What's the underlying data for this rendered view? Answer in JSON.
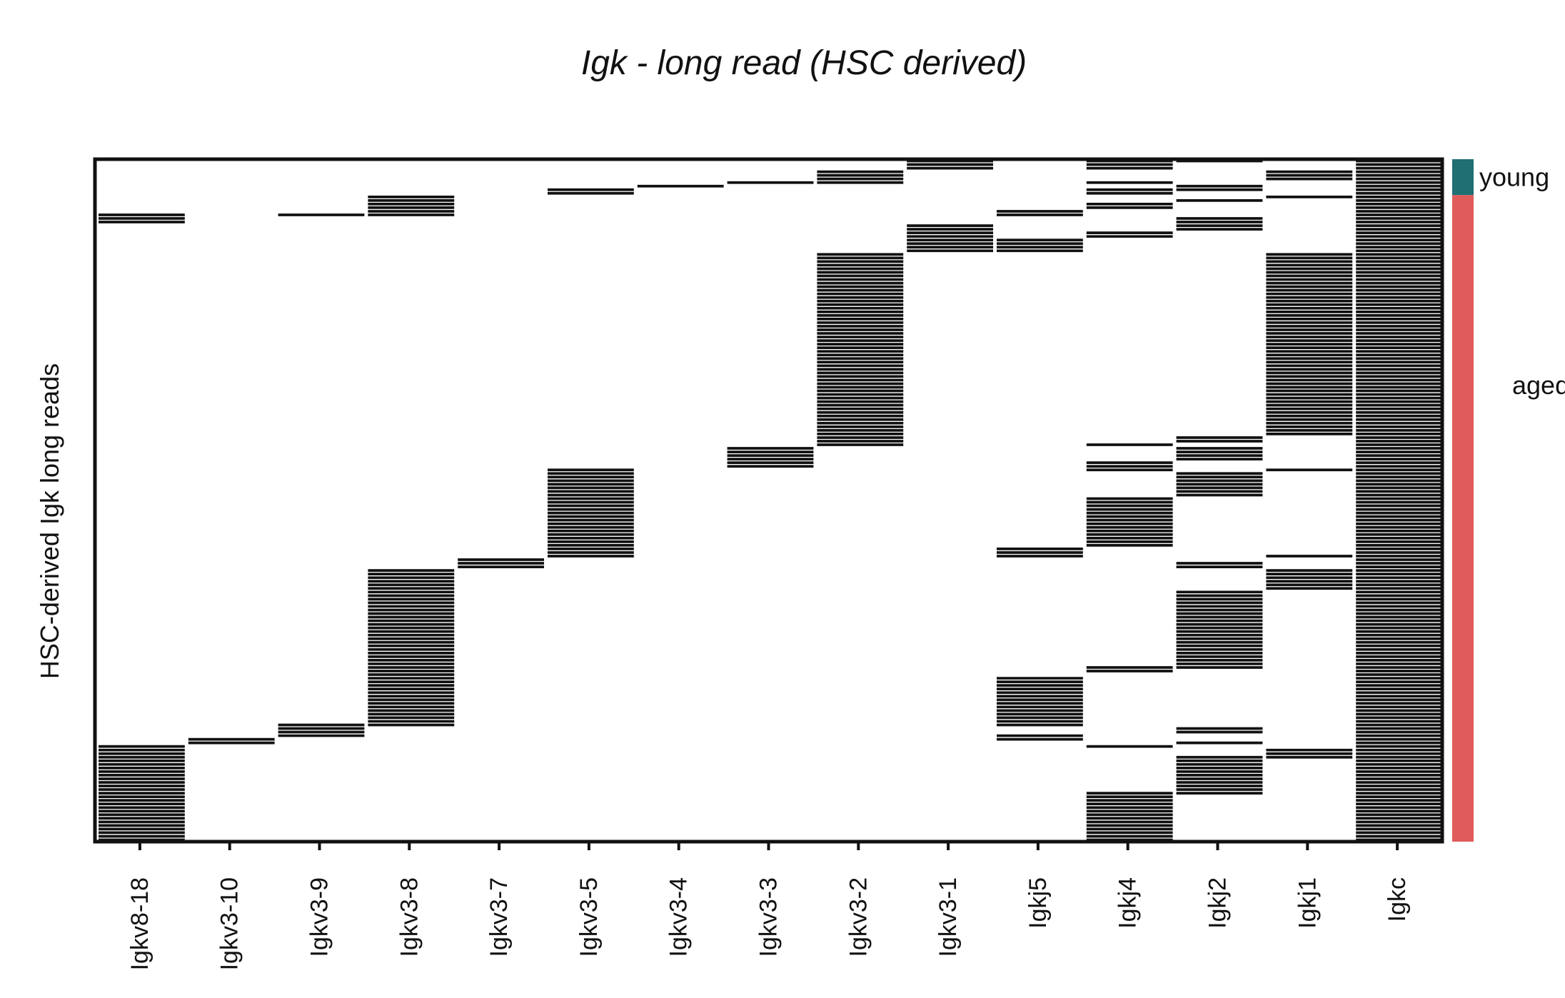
{
  "chart_data": {
    "type": "heatmap",
    "title": "Igk - long read (HSC derived)",
    "ylabel": "HSC-derived Igk long reads",
    "xlabel": "",
    "grid": false,
    "legend_placement": "right",
    "n_rows": 190,
    "columns": [
      "Igkv8-18",
      "Igkv3-10",
      "Igkv3-9",
      "Igkv3-8",
      "Igkv3-7",
      "Igkv3-5",
      "Igkv3-4",
      "Igkv3-3",
      "Igkv3-2",
      "Igkv3-1",
      "Igkj5",
      "Igkj4",
      "Igkj2",
      "Igkj1",
      "Igkc"
    ],
    "colors": {
      "present": "#111111",
      "absent": "#ffffff",
      "young": "#1f6f73",
      "aged": "#e05c5a"
    },
    "groups": [
      {
        "name": "young",
        "row_start": 0,
        "row_end": 10
      },
      {
        "name": "aged",
        "row_start": 10,
        "row_end": 190
      }
    ],
    "present_blocks": [
      {
        "column": "Igkv8-18",
        "rows": [
          [
            15,
            18
          ],
          [
            163,
            190
          ]
        ]
      },
      {
        "column": "Igkv3-10",
        "rows": [
          [
            161,
            163
          ]
        ]
      },
      {
        "column": "Igkv3-9",
        "rows": [
          [
            15,
            16
          ],
          [
            157,
            161
          ]
        ]
      },
      {
        "column": "Igkv3-8",
        "rows": [
          [
            10,
            16
          ],
          [
            114,
            158
          ]
        ]
      },
      {
        "column": "Igkv3-7",
        "rows": [
          [
            111,
            114
          ]
        ]
      },
      {
        "column": "Igkv3-5",
        "rows": [
          [
            8,
            10
          ],
          [
            86,
            111
          ]
        ]
      },
      {
        "column": "Igkv3-4",
        "rows": [
          [
            7,
            8
          ]
        ]
      },
      {
        "column": "Igkv3-3",
        "rows": [
          [
            6,
            7
          ],
          [
            80,
            86
          ]
        ]
      },
      {
        "column": "Igkv3-2",
        "rows": [
          [
            3,
            7
          ],
          [
            26,
            80
          ]
        ]
      },
      {
        "column": "Igkv3-1",
        "rows": [
          [
            0,
            3
          ],
          [
            18,
            26
          ]
        ]
      },
      {
        "column": "Igkj5",
        "rows": [
          [
            14,
            16
          ],
          [
            22,
            26
          ],
          [
            108,
            111
          ],
          [
            144,
            158
          ],
          [
            160,
            162
          ]
        ]
      },
      {
        "column": "Igkj4",
        "rows": [
          [
            0,
            3
          ],
          [
            6,
            7
          ],
          [
            8,
            10
          ],
          [
            12,
            14
          ],
          [
            20,
            22
          ],
          [
            79,
            80
          ],
          [
            84,
            87
          ],
          [
            94,
            108
          ],
          [
            141,
            143
          ],
          [
            163,
            164
          ],
          [
            176,
            190
          ]
        ]
      },
      {
        "column": "Igkj2",
        "rows": [
          [
            0,
            1
          ],
          [
            7,
            9
          ],
          [
            11,
            12
          ],
          [
            16,
            20
          ],
          [
            77,
            79
          ],
          [
            80,
            84
          ],
          [
            87,
            94
          ],
          [
            112,
            114
          ],
          [
            120,
            142
          ],
          [
            158,
            160
          ],
          [
            162,
            163
          ],
          [
            166,
            177
          ]
        ]
      },
      {
        "column": "Igkj1",
        "rows": [
          [
            3,
            6
          ],
          [
            10,
            11
          ],
          [
            26,
            77
          ],
          [
            86,
            87
          ],
          [
            110,
            111
          ],
          [
            114,
            120
          ],
          [
            164,
            167
          ]
        ]
      },
      {
        "column": "Igkc",
        "rows": [
          [
            0,
            190
          ]
        ]
      }
    ]
  }
}
